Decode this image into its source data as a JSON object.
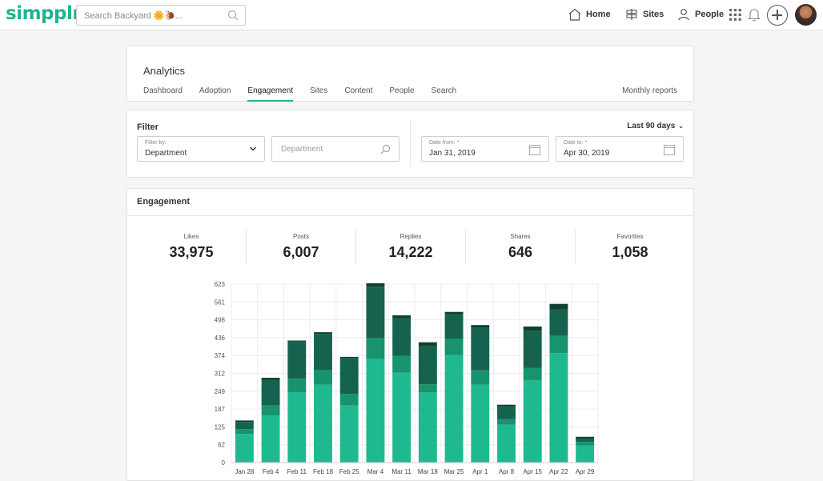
{
  "nav": {
    "logo": "simpplr.",
    "search_placeholder": "Search Backyard 🌼🐌...",
    "home": "Home",
    "sites": "Sites",
    "people": "People"
  },
  "analytics": {
    "title": "Analytics",
    "tabs": [
      "Dashboard",
      "Adoption",
      "Engagement",
      "Sites",
      "Content",
      "People",
      "Search"
    ],
    "active_tab": "Engagement",
    "monthly_reports": "Monthly reports"
  },
  "filter": {
    "title": "Filter",
    "range": "Last 90 days",
    "filter_by_label": "Filter by:",
    "filter_by_value": "Department",
    "department_placeholder": "Department",
    "date_from_label": "Date from: *",
    "date_from_value": "Jan 31, 2019",
    "date_to_label": "Date to: *",
    "date_to_value": "Apr 30, 2019"
  },
  "engagement": {
    "title": "Engagement",
    "stats": [
      {
        "label": "Likes",
        "value": "33,975"
      },
      {
        "label": "Posts",
        "value": "6,007"
      },
      {
        "label": "Replies",
        "value": "14,222"
      },
      {
        "label": "Shares",
        "value": "646"
      },
      {
        "label": "Favorites",
        "value": "1,058"
      }
    ]
  },
  "colors": {
    "accent": "#1fb58f",
    "series": [
      "#1fb990",
      "#17936e",
      "#15634f",
      "#0f3f30"
    ]
  },
  "chart_data": {
    "type": "bar",
    "stacked": true,
    "categories": [
      "Jan 28",
      "Feb 4",
      "Feb 11",
      "Feb 18",
      "Feb 25",
      "Mar 4",
      "Mar 11",
      "Mar 18",
      "Mar 25",
      "Apr 1",
      "Apr 8",
      "Apr 15",
      "Apr 22",
      "Apr 29"
    ],
    "y_ticks": [
      "0",
      "62",
      "125",
      "187",
      "249",
      "312",
      "374",
      "436",
      "498",
      "561",
      "623"
    ],
    "ylim": [
      0,
      623
    ],
    "grid": true,
    "series": [
      {
        "values": [
          100,
          165,
          245,
          272,
          200,
          362,
          314,
          245,
          375,
          272,
          132,
          288,
          382,
          60
        ]
      },
      {
        "values": [
          17,
          35,
          48,
          52,
          40,
          72,
          58,
          28,
          58,
          50,
          20,
          42,
          60,
          12
        ]
      },
      {
        "values": [
          25,
          88,
          130,
          125,
          125,
          180,
          132,
          135,
          85,
          150,
          44,
          130,
          92,
          12
        ]
      },
      {
        "values": [
          5,
          8,
          3,
          6,
          4,
          12,
          10,
          12,
          8,
          8,
          6,
          15,
          20,
          6
        ]
      }
    ]
  }
}
